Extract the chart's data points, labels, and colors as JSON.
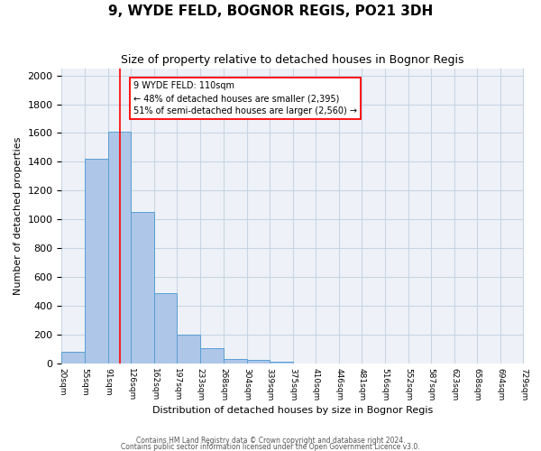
{
  "title": "9, WYDE FELD, BOGNOR REGIS, PO21 3DH",
  "subtitle": "Size of property relative to detached houses in Bognor Regis",
  "xlabel": "Distribution of detached houses by size in Bognor Regis",
  "ylabel": "Number of detached properties",
  "bar_edges": [
    20,
    55,
    91,
    126,
    162,
    197,
    233,
    268,
    304,
    339,
    375,
    410,
    446,
    481,
    516,
    552,
    587,
    623,
    658,
    694,
    729
  ],
  "bar_heights": [
    80,
    1420,
    1610,
    1050,
    490,
    200,
    105,
    35,
    25,
    15,
    0,
    0,
    0,
    0,
    0,
    0,
    0,
    0,
    0,
    0
  ],
  "bar_color": "#aec6e8",
  "bar_edgecolor": "#5a9fd4",
  "red_line_x": 110,
  "ylim": [
    0,
    2050
  ],
  "annotation_text": "9 WYDE FELD: 110sqm\n← 48% of detached houses are smaller (2,395)\n51% of semi-detached houses are larger (2,560) →",
  "footer1": "Contains HM Land Registry data © Crown copyright and database right 2024.",
  "footer2": "Contains public sector information licensed under the Open Government Licence v3.0.",
  "bg_color": "#eef2f8",
  "grid_color": "#c8d4e4",
  "title_fontsize": 11,
  "subtitle_fontsize": 9,
  "tick_labels": [
    "20sqm",
    "55sqm",
    "91sqm",
    "126sqm",
    "162sqm",
    "197sqm",
    "233sqm",
    "268sqm",
    "304sqm",
    "339sqm",
    "375sqm",
    "410sqm",
    "446sqm",
    "481sqm",
    "516sqm",
    "552sqm",
    "587sqm",
    "623sqm",
    "658sqm",
    "694sqm",
    "729sqm"
  ]
}
